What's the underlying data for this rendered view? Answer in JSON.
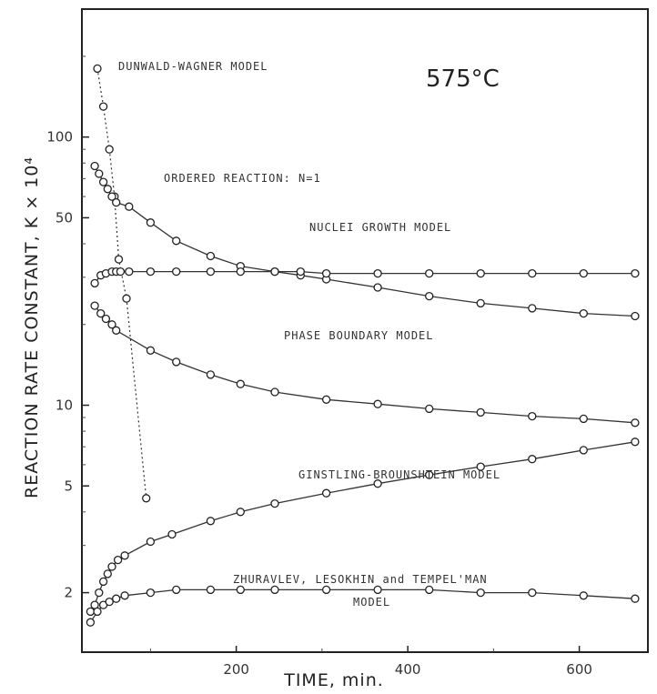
{
  "chart_data": {
    "type": "line",
    "ylabel": "REACTION RATE CONSTANT, K × 10⁴",
    "xlabel": "TIME, min.",
    "xlim": [
      20,
      680
    ],
    "ylim": [
      1.2,
      300
    ],
    "yscale": "log",
    "grid": false,
    "xticks": [
      "200",
      "400",
      "600"
    ],
    "yticks": [
      "2",
      "5",
      "10",
      "50",
      "100"
    ],
    "annotations": {
      "temperature": "575°C",
      "curve_labels": [
        "DUNWALD-WAGNER MODEL",
        "ORDERED REACTION: N=1",
        "NUCLEI GROWTH MODEL",
        "PHASE BOUNDARY MODEL",
        "GINSTLING-BROUNSHTEIN MODEL",
        "ZHURAVLEV, LESOKHIN and TEMPEL'MAN",
        "MODEL"
      ]
    },
    "series": [
      {
        "name": "DUNWALD-WAGNER MODEL",
        "style": "dotted",
        "x": [
          38,
          45,
          52,
          58,
          63,
          72,
          95
        ],
        "y": [
          180,
          130,
          90,
          60,
          35,
          25,
          4.5
        ]
      },
      {
        "name": "ORDERED REACTION: N=1",
        "style": "solid",
        "x": [
          35,
          40,
          45,
          50,
          55,
          60,
          75,
          100,
          130,
          170,
          205,
          245,
          275,
          305,
          365,
          425,
          485,
          545,
          605,
          665
        ],
        "y": [
          78,
          73,
          68,
          64,
          60,
          57,
          55,
          48,
          41,
          36,
          33,
          31.5,
          30.5,
          29.5,
          27.5,
          25.5,
          24,
          23,
          22,
          21.5
        ]
      },
      {
        "name": "NUCLEI GROWTH MODEL",
        "style": "solid",
        "x": [
          35,
          42,
          48,
          55,
          60,
          65,
          75,
          100,
          130,
          170,
          205,
          245,
          275,
          305,
          365,
          425,
          485,
          545,
          605,
          665
        ],
        "y": [
          28.5,
          30.5,
          31,
          31.5,
          31.5,
          31.5,
          31.5,
          31.5,
          31.5,
          31.5,
          31.5,
          31.5,
          31.5,
          31,
          31,
          31,
          31,
          31,
          31,
          31
        ]
      },
      {
        "name": "PHASE BOUNDARY MODEL",
        "style": "solid",
        "x": [
          35,
          42,
          48,
          55,
          60,
          100,
          130,
          170,
          205,
          245,
          305,
          365,
          425,
          485,
          545,
          605,
          665
        ],
        "y": [
          23.5,
          22,
          21,
          20,
          19,
          16,
          14.5,
          13,
          12,
          11.2,
          10.5,
          10.1,
          9.7,
          9.4,
          9.1,
          8.9,
          8.6
        ]
      },
      {
        "name": "GINSTLING-BROUNSHTEIN MODEL",
        "style": "solid",
        "x": [
          30,
          35,
          40,
          45,
          50,
          55,
          62,
          70,
          100,
          125,
          170,
          205,
          245,
          305,
          365,
          425,
          485,
          545,
          605,
          665
        ],
        "y": [
          1.7,
          1.8,
          2.0,
          2.2,
          2.35,
          2.5,
          2.65,
          2.75,
          3.1,
          3.3,
          3.7,
          4.0,
          4.3,
          4.7,
          5.1,
          5.5,
          5.9,
          6.3,
          6.8,
          7.3
        ]
      },
      {
        "name": "ZHURAVLEV, LESOKHIN and TEMPEL'MAN MODEL",
        "style": "solid",
        "x": [
          30,
          38,
          45,
          52,
          60,
          70,
          100,
          130,
          170,
          205,
          245,
          305,
          365,
          425,
          485,
          545,
          605,
          665
        ],
        "y": [
          1.55,
          1.7,
          1.8,
          1.85,
          1.9,
          1.95,
          2.0,
          2.05,
          2.05,
          2.05,
          2.05,
          2.05,
          2.05,
          2.05,
          2.0,
          2.0,
          1.95,
          1.9
        ]
      }
    ]
  }
}
